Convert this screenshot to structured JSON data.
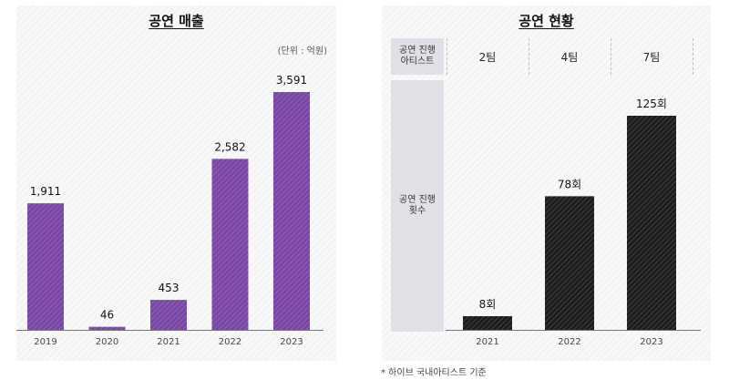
{
  "left": {
    "title": "공연 매출",
    "unit": "(단위 : 억원)"
  },
  "right": {
    "title": "공연 현황",
    "row_headers": {
      "teams": "공연 진행\n아티스트",
      "shows": "공연 진행\n횟수"
    },
    "teams": [
      "2팀",
      "4팀",
      "7팀"
    ]
  },
  "footnote": "* 하이브 국내아티스트 기준",
  "colors": {
    "revenue_bar": "#7b45a8",
    "shows_bar": "#1c1c1c",
    "panel_bg": "#f4f4f4",
    "row_header_bg": "#e2e0e7"
  },
  "chart_data": [
    {
      "type": "bar",
      "title": "공연 매출",
      "categories": [
        "2019",
        "2020",
        "2021",
        "2022",
        "2023"
      ],
      "values": [
        1911,
        46,
        453,
        2582,
        3591
      ],
      "value_labels": [
        "1,911",
        "46",
        "453",
        "2,582",
        "3,591"
      ],
      "ylim": [
        0,
        3591
      ],
      "ylabel": "(단위 : 억원)",
      "grid": false,
      "legend": "none"
    },
    {
      "type": "bar",
      "title": "공연 현황",
      "categories": [
        "2021",
        "2022",
        "2023"
      ],
      "values": [
        8,
        78,
        125
      ],
      "value_labels": [
        "8회",
        "78회",
        "125회"
      ],
      "ylim": [
        0,
        125
      ],
      "grid": false,
      "legend": "none"
    }
  ]
}
